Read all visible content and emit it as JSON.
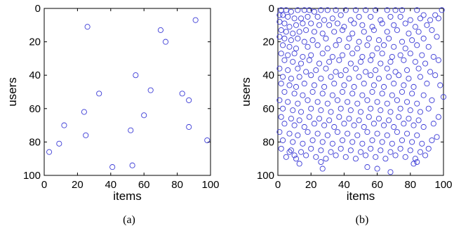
{
  "chart_data": [
    {
      "type": "scatter",
      "panel_label": "(a)",
      "xlabel": "items",
      "ylabel": "users",
      "xlim": [
        0,
        100
      ],
      "ylim": [
        0,
        100
      ],
      "y_inverted": true,
      "xticks": [
        "0",
        "20",
        "40",
        "60",
        "80",
        "100"
      ],
      "yticks": [
        "0",
        "20",
        "40",
        "60",
        "80",
        "100"
      ],
      "marker": "circle-open",
      "color": "#3b3bd6",
      "points": [
        [
          26,
          11
        ],
        [
          70,
          13
        ],
        [
          91,
          7
        ],
        [
          73,
          20
        ],
        [
          55,
          40
        ],
        [
          64,
          49
        ],
        [
          33,
          51
        ],
        [
          83,
          51
        ],
        [
          87,
          55
        ],
        [
          24,
          62
        ],
        [
          60,
          64
        ],
        [
          12,
          70
        ],
        [
          87,
          71
        ],
        [
          52,
          73
        ],
        [
          25,
          76
        ],
        [
          9,
          81
        ],
        [
          98,
          79
        ],
        [
          3,
          86
        ],
        [
          41,
          95
        ],
        [
          53,
          94
        ]
      ]
    },
    {
      "type": "scatter",
      "panel_label": "(b)",
      "xlabel": "items",
      "ylabel": "users",
      "xlim": [
        0,
        100
      ],
      "ylim": [
        0,
        100
      ],
      "y_inverted": true,
      "xticks": [
        "0",
        "20",
        "40",
        "60",
        "80",
        "100"
      ],
      "yticks": [
        "0",
        "20",
        "40",
        "60",
        "80",
        "100"
      ],
      "marker": "circle-open",
      "color": "#3b3bd6",
      "points": [
        [
          2,
          1
        ],
        [
          5,
          1
        ],
        [
          8,
          2
        ],
        [
          12,
          1
        ],
        [
          16,
          1
        ],
        [
          19,
          1
        ],
        [
          22,
          2
        ],
        [
          26,
          1
        ],
        [
          30,
          1
        ],
        [
          35,
          1
        ],
        [
          41,
          1
        ],
        [
          47,
          1
        ],
        [
          53,
          1
        ],
        [
          59,
          1
        ],
        [
          66,
          1
        ],
        [
          71,
          1
        ],
        [
          75,
          1
        ],
        [
          84,
          1
        ],
        [
          88,
          4
        ],
        [
          95,
          4
        ],
        [
          99,
          1
        ],
        [
          1,
          4
        ],
        [
          3,
          4
        ],
        [
          6,
          5
        ],
        [
          10,
          6
        ],
        [
          14,
          6
        ],
        [
          18,
          5
        ],
        [
          24,
          5
        ],
        [
          28,
          7
        ],
        [
          33,
          6
        ],
        [
          38,
          4
        ],
        [
          44,
          7
        ],
        [
          49,
          5
        ],
        [
          56,
          5
        ],
        [
          62,
          7
        ],
        [
          68,
          5
        ],
        [
          74,
          5
        ],
        [
          80,
          7
        ],
        [
          86,
          6
        ],
        [
          92,
          7
        ],
        [
          97,
          6
        ],
        [
          1,
          8
        ],
        [
          4,
          9
        ],
        [
          7,
          11
        ],
        [
          11,
          10
        ],
        [
          15,
          9
        ],
        [
          20,
          9
        ],
        [
          25,
          10
        ],
        [
          31,
          10
        ],
        [
          36,
          9
        ],
        [
          40,
          11
        ],
        [
          46,
          9
        ],
        [
          51,
          10
        ],
        [
          57,
          11
        ],
        [
          63,
          9
        ],
        [
          70,
          10
        ],
        [
          77,
          9
        ],
        [
          83,
          11
        ],
        [
          90,
          10
        ],
        [
          2,
          13
        ],
        [
          5,
          14
        ],
        [
          9,
          15
        ],
        [
          13,
          14
        ],
        [
          17,
          13
        ],
        [
          22,
          14
        ],
        [
          27,
          15
        ],
        [
          34,
          14
        ],
        [
          39,
          13
        ],
        [
          45,
          15
        ],
        [
          52,
          14
        ],
        [
          58,
          13
        ],
        [
          66,
          14
        ],
        [
          72,
          13
        ],
        [
          79,
          15
        ],
        [
          85,
          14
        ],
        [
          93,
          13
        ],
        [
          1,
          17
        ],
        [
          4,
          18
        ],
        [
          8,
          19
        ],
        [
          12,
          18
        ],
        [
          16,
          20
        ],
        [
          21,
          19
        ],
        [
          29,
          18
        ],
        [
          37,
          19
        ],
        [
          43,
          18
        ],
        [
          49,
          20
        ],
        [
          55,
          18
        ],
        [
          61,
          19
        ],
        [
          67,
          18
        ],
        [
          75,
          20
        ],
        [
          81,
          19
        ],
        [
          88,
          18
        ],
        [
          96,
          17
        ],
        [
          3,
          22
        ],
        [
          7,
          23
        ],
        [
          11,
          24
        ],
        [
          18,
          23
        ],
        [
          24,
          22
        ],
        [
          30,
          24
        ],
        [
          35,
          22
        ],
        [
          42,
          23
        ],
        [
          48,
          24
        ],
        [
          54,
          22
        ],
        [
          60,
          24
        ],
        [
          64,
          22
        ],
        [
          70,
          23
        ],
        [
          77,
          24
        ],
        [
          84,
          22
        ],
        [
          91,
          23
        ],
        [
          2,
          27
        ],
        [
          6,
          28
        ],
        [
          10,
          27
        ],
        [
          15,
          29
        ],
        [
          20,
          28
        ],
        [
          27,
          27
        ],
        [
          33,
          29
        ],
        [
          39,
          28
        ],
        [
          45,
          27
        ],
        [
          51,
          29
        ],
        [
          57,
          28
        ],
        [
          63,
          27
        ],
        [
          69,
          29
        ],
        [
          74,
          28
        ],
        [
          80,
          27
        ],
        [
          87,
          28
        ],
        [
          94,
          29
        ],
        [
          4,
          31
        ],
        [
          9,
          32
        ],
        [
          14,
          33
        ],
        [
          19,
          31
        ],
        [
          25,
          33
        ],
        [
          31,
          32
        ],
        [
          37,
          31
        ],
        [
          44,
          33
        ],
        [
          50,
          32
        ],
        [
          56,
          31
        ],
        [
          62,
          33
        ],
        [
          68,
          32
        ],
        [
          76,
          31
        ],
        [
          83,
          32
        ],
        [
          89,
          33
        ],
        [
          97,
          31
        ],
        [
          1,
          36
        ],
        [
          6,
          37
        ],
        [
          12,
          36
        ],
        [
          17,
          38
        ],
        [
          23,
          37
        ],
        [
          29,
          36
        ],
        [
          35,
          38
        ],
        [
          41,
          37
        ],
        [
          47,
          36
        ],
        [
          53,
          38
        ],
        [
          59,
          37
        ],
        [
          66,
          36
        ],
        [
          71,
          38
        ],
        [
          78,
          37
        ],
        [
          85,
          36
        ],
        [
          92,
          38
        ],
        [
          3,
          41
        ],
        [
          8,
          42
        ],
        [
          13,
          41
        ],
        [
          20,
          40
        ],
        [
          26,
          42
        ],
        [
          32,
          41
        ],
        [
          38,
          40
        ],
        [
          43,
          42
        ],
        [
          49,
          41
        ],
        [
          56,
          40
        ],
        [
          61,
          42
        ],
        [
          67,
          41
        ],
        [
          73,
          40
        ],
        [
          79,
          42
        ],
        [
          86,
          41
        ],
        [
          95,
          40
        ],
        [
          2,
          45
        ],
        [
          7,
          46
        ],
        [
          11,
          47
        ],
        [
          16,
          45
        ],
        [
          22,
          46
        ],
        [
          28,
          47
        ],
        [
          34,
          45
        ],
        [
          40,
          46
        ],
        [
          46,
          47
        ],
        [
          52,
          45
        ],
        [
          58,
          46
        ],
        [
          64,
          47
        ],
        [
          70,
          45
        ],
        [
          76,
          46
        ],
        [
          82,
          47
        ],
        [
          90,
          45
        ],
        [
          98,
          46
        ],
        [
          4,
          50
        ],
        [
          10,
          51
        ],
        [
          15,
          52
        ],
        [
          21,
          50
        ],
        [
          27,
          51
        ],
        [
          33,
          52
        ],
        [
          39,
          50
        ],
        [
          45,
          51
        ],
        [
          51,
          52
        ],
        [
          57,
          50
        ],
        [
          63,
          51
        ],
        [
          69,
          52
        ],
        [
          75,
          50
        ],
        [
          81,
          51
        ],
        [
          88,
          52
        ],
        [
          100,
          53
        ],
        [
          1,
          55
        ],
        [
          6,
          56
        ],
        [
          12,
          57
        ],
        [
          18,
          55
        ],
        [
          24,
          56
        ],
        [
          30,
          57
        ],
        [
          36,
          55
        ],
        [
          42,
          56
        ],
        [
          48,
          57
        ],
        [
          54,
          55
        ],
        [
          60,
          56
        ],
        [
          66,
          57
        ],
        [
          72,
          55
        ],
        [
          78,
          56
        ],
        [
          84,
          57
        ],
        [
          93,
          55
        ],
        [
          3,
          60
        ],
        [
          9,
          61
        ],
        [
          14,
          62
        ],
        [
          20,
          60
        ],
        [
          26,
          61
        ],
        [
          32,
          62
        ],
        [
          38,
          60
        ],
        [
          44,
          61
        ],
        [
          50,
          62
        ],
        [
          56,
          60
        ],
        [
          62,
          61
        ],
        [
          68,
          62
        ],
        [
          74,
          60
        ],
        [
          80,
          61
        ],
        [
          86,
          62
        ],
        [
          91,
          60
        ],
        [
          2,
          65
        ],
        [
          8,
          66
        ],
        [
          13,
          67
        ],
        [
          19,
          65
        ],
        [
          25,
          66
        ],
        [
          31,
          67
        ],
        [
          37,
          65
        ],
        [
          43,
          66
        ],
        [
          49,
          67
        ],
        [
          55,
          65
        ],
        [
          61,
          66
        ],
        [
          67,
          67
        ],
        [
          73,
          65
        ],
        [
          79,
          66
        ],
        [
          85,
          67
        ],
        [
          97,
          65
        ],
        [
          4,
          69
        ],
        [
          10,
          70
        ],
        [
          16,
          71
        ],
        [
          22,
          69
        ],
        [
          28,
          70
        ],
        [
          34,
          71
        ],
        [
          40,
          69
        ],
        [
          46,
          70
        ],
        [
          52,
          71
        ],
        [
          58,
          69
        ],
        [
          64,
          70
        ],
        [
          70,
          71
        ],
        [
          76,
          69
        ],
        [
          82,
          70
        ],
        [
          88,
          71
        ],
        [
          94,
          69
        ],
        [
          1,
          74
        ],
        [
          7,
          75
        ],
        [
          12,
          76
        ],
        [
          18,
          74
        ],
        [
          24,
          75
        ],
        [
          30,
          76
        ],
        [
          36,
          74
        ],
        [
          42,
          75
        ],
        [
          48,
          76
        ],
        [
          54,
          74
        ],
        [
          60,
          75
        ],
        [
          66,
          76
        ],
        [
          72,
          74
        ],
        [
          78,
          75
        ],
        [
          84,
          76
        ],
        [
          96,
          77
        ],
        [
          3,
          79
        ],
        [
          9,
          80
        ],
        [
          15,
          81
        ],
        [
          21,
          79
        ],
        [
          27,
          80
        ],
        [
          33,
          81
        ],
        [
          39,
          79
        ],
        [
          45,
          80
        ],
        [
          51,
          81
        ],
        [
          57,
          79
        ],
        [
          63,
          80
        ],
        [
          69,
          81
        ],
        [
          75,
          79
        ],
        [
          81,
          80
        ],
        [
          87,
          81
        ],
        [
          93,
          79
        ],
        [
          2,
          84
        ],
        [
          8,
          85
        ],
        [
          14,
          86
        ],
        [
          20,
          84
        ],
        [
          26,
          85
        ],
        [
          32,
          86
        ],
        [
          38,
          84
        ],
        [
          44,
          85
        ],
        [
          50,
          86
        ],
        [
          56,
          84
        ],
        [
          62,
          85
        ],
        [
          68,
          86
        ],
        [
          74,
          84
        ],
        [
          80,
          85
        ],
        [
          86,
          86
        ],
        [
          91,
          84
        ],
        [
          5,
          89
        ],
        [
          11,
          90
        ],
        [
          17,
          88
        ],
        [
          23,
          89
        ],
        [
          29,
          90
        ],
        [
          35,
          88
        ],
        [
          41,
          89
        ],
        [
          47,
          90
        ],
        [
          53,
          88
        ],
        [
          59,
          89
        ],
        [
          65,
          90
        ],
        [
          71,
          88
        ],
        [
          77,
          89
        ],
        [
          83,
          90
        ],
        [
          89,
          88
        ],
        [
          13,
          93
        ],
        [
          26,
          92
        ],
        [
          27,
          96
        ],
        [
          54,
          95
        ],
        [
          60,
          96
        ],
        [
          68,
          98
        ],
        [
          82,
          93
        ],
        [
          84,
          92
        ],
        [
          10,
          88
        ],
        [
          7,
          86
        ]
      ]
    }
  ]
}
